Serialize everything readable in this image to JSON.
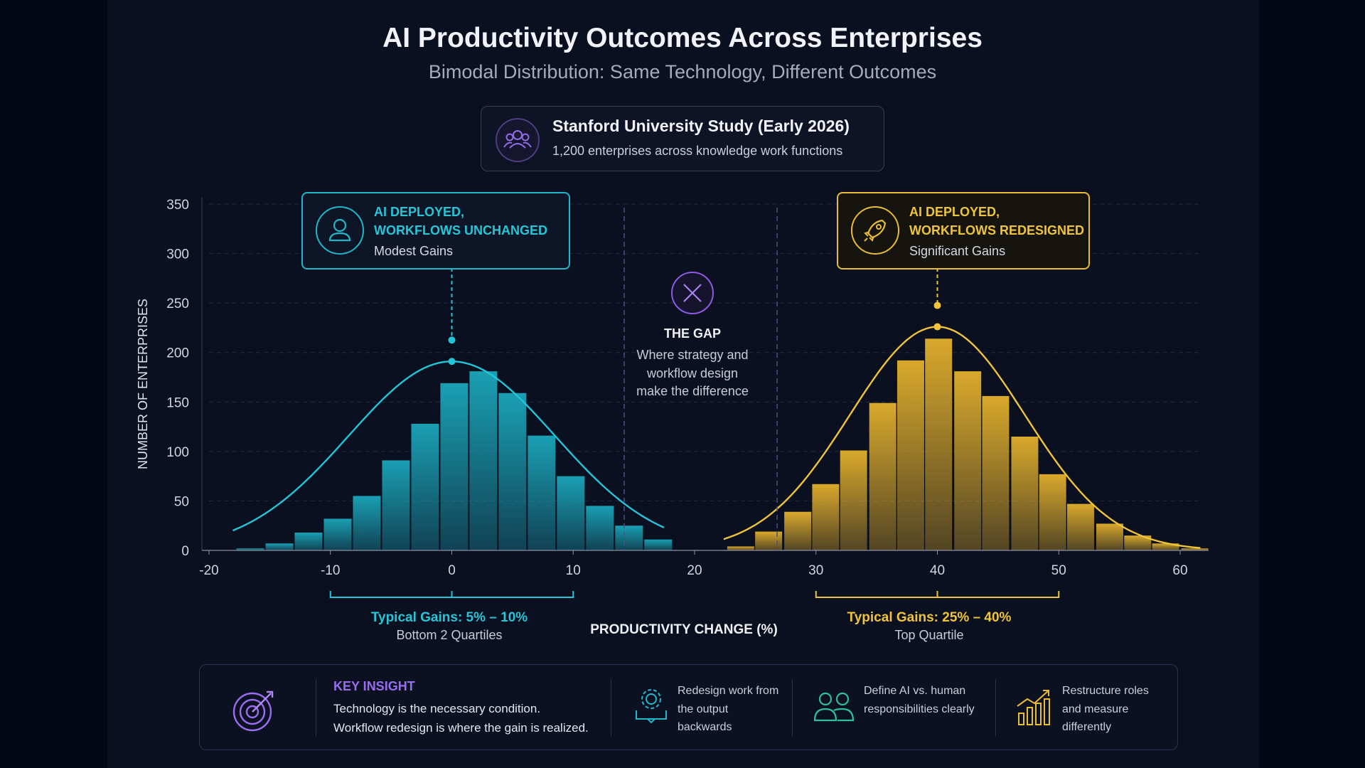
{
  "title": "AI Productivity Outcomes Across Enterprises",
  "subtitle": "Bimodal Distribution: Same Technology, Different Outcomes",
  "study": {
    "title": "Stanford University Study (Early 2026)",
    "description": "1,200 enterprises across knowledge work functions",
    "icon": "group-icon"
  },
  "callouts": {
    "left": {
      "line1": "AI DEPLOYED,",
      "line2": "WORKFLOWS UNCHANGED",
      "line3": "Modest Gains",
      "icon": "person-icon",
      "color": "#1fb7c9"
    },
    "right": {
      "line1": "AI DEPLOYED,",
      "line2": "WORKFLOWS REDESIGNED",
      "line3": "Significant Gains",
      "icon": "rocket-icon",
      "color": "#e9bc35"
    }
  },
  "gap": {
    "title": "THE GAP",
    "text": "Where strategy and workflow design make the difference",
    "icon": "x-circle-icon"
  },
  "ranges": {
    "left": {
      "title": "Typical Gains: 5% – 10%",
      "subtitle": "Bottom 2 Quartiles"
    },
    "right": {
      "title": "Typical Gains: 25% – 40%",
      "subtitle": "Top Quartile"
    }
  },
  "chart_data": {
    "type": "bar",
    "xlabel": "PRODUCTIVITY CHANGE (%)",
    "ylabel": "NUMBER OF ENTERPRISES",
    "xlim": [
      -20,
      60
    ],
    "ylim": [
      0,
      350
    ],
    "xticks": [
      "-20",
      "-10",
      "0",
      "10",
      "20",
      "30",
      "40",
      "50",
      "60"
    ],
    "yticks": [
      "0",
      "50",
      "100",
      "150",
      "200",
      "250",
      "300",
      "350"
    ],
    "grid": true,
    "series": [
      {
        "color": "#1a9fb3",
        "curve_color": "#22c5d8",
        "bin_width": 2.4,
        "x": [
          -16.6,
          -14.2,
          -11.8,
          -9.4,
          -7.0,
          -4.6,
          -2.2,
          0.2,
          2.6,
          5.0,
          7.4,
          9.8,
          12.2,
          14.6,
          17.0
        ],
        "values": [
          2,
          7,
          18,
          32,
          55,
          91,
          128,
          169,
          181,
          159,
          116,
          75,
          45,
          25,
          11
        ],
        "curve": {
          "mean": 0,
          "sd": 8.5,
          "peak": 191
        }
      },
      {
        "color": "#d9a92c",
        "curve_color": "#efc43c",
        "bin_width": 2.34,
        "x": [
          23.8,
          26.1,
          28.5,
          30.8,
          33.1,
          35.5,
          37.8,
          40.1,
          42.5,
          44.8,
          47.2,
          49.5,
          51.8,
          54.2,
          56.5,
          58.8,
          61.2
        ],
        "values": [
          4,
          19,
          39,
          67,
          101,
          149,
          192,
          214,
          181,
          156,
          115,
          77,
          47,
          27,
          15,
          7,
          2
        ],
        "curve": {
          "mean": 40,
          "sd": 7.2,
          "peak": 226
        }
      }
    ],
    "annotations": [
      {
        "type": "vline",
        "x": 14.2
      },
      {
        "type": "vline",
        "x": 26.8
      },
      {
        "type": "bracket",
        "x0": -10,
        "x1": 10
      },
      {
        "type": "bracket",
        "x0": 30,
        "x1": 50
      }
    ]
  },
  "insight": {
    "heading": "KEY INSIGHT",
    "line1": "Technology is the necessary condition.",
    "line2": "Workflow redesign is where the gain is realized.",
    "icon": "target-icon",
    "accent": "#9a6cf0"
  },
  "actions": [
    {
      "text": "Redesign work from the output backwards",
      "icon": "gear-cycle-icon",
      "color": "#1fb7c9"
    },
    {
      "text": "Define AI vs. human responsibilities clearly",
      "icon": "people-icon",
      "color": "#2fbf9a"
    },
    {
      "text": "Restructure roles and measure differently",
      "icon": "growth-chart-icon",
      "color": "#e9bc35"
    }
  ]
}
